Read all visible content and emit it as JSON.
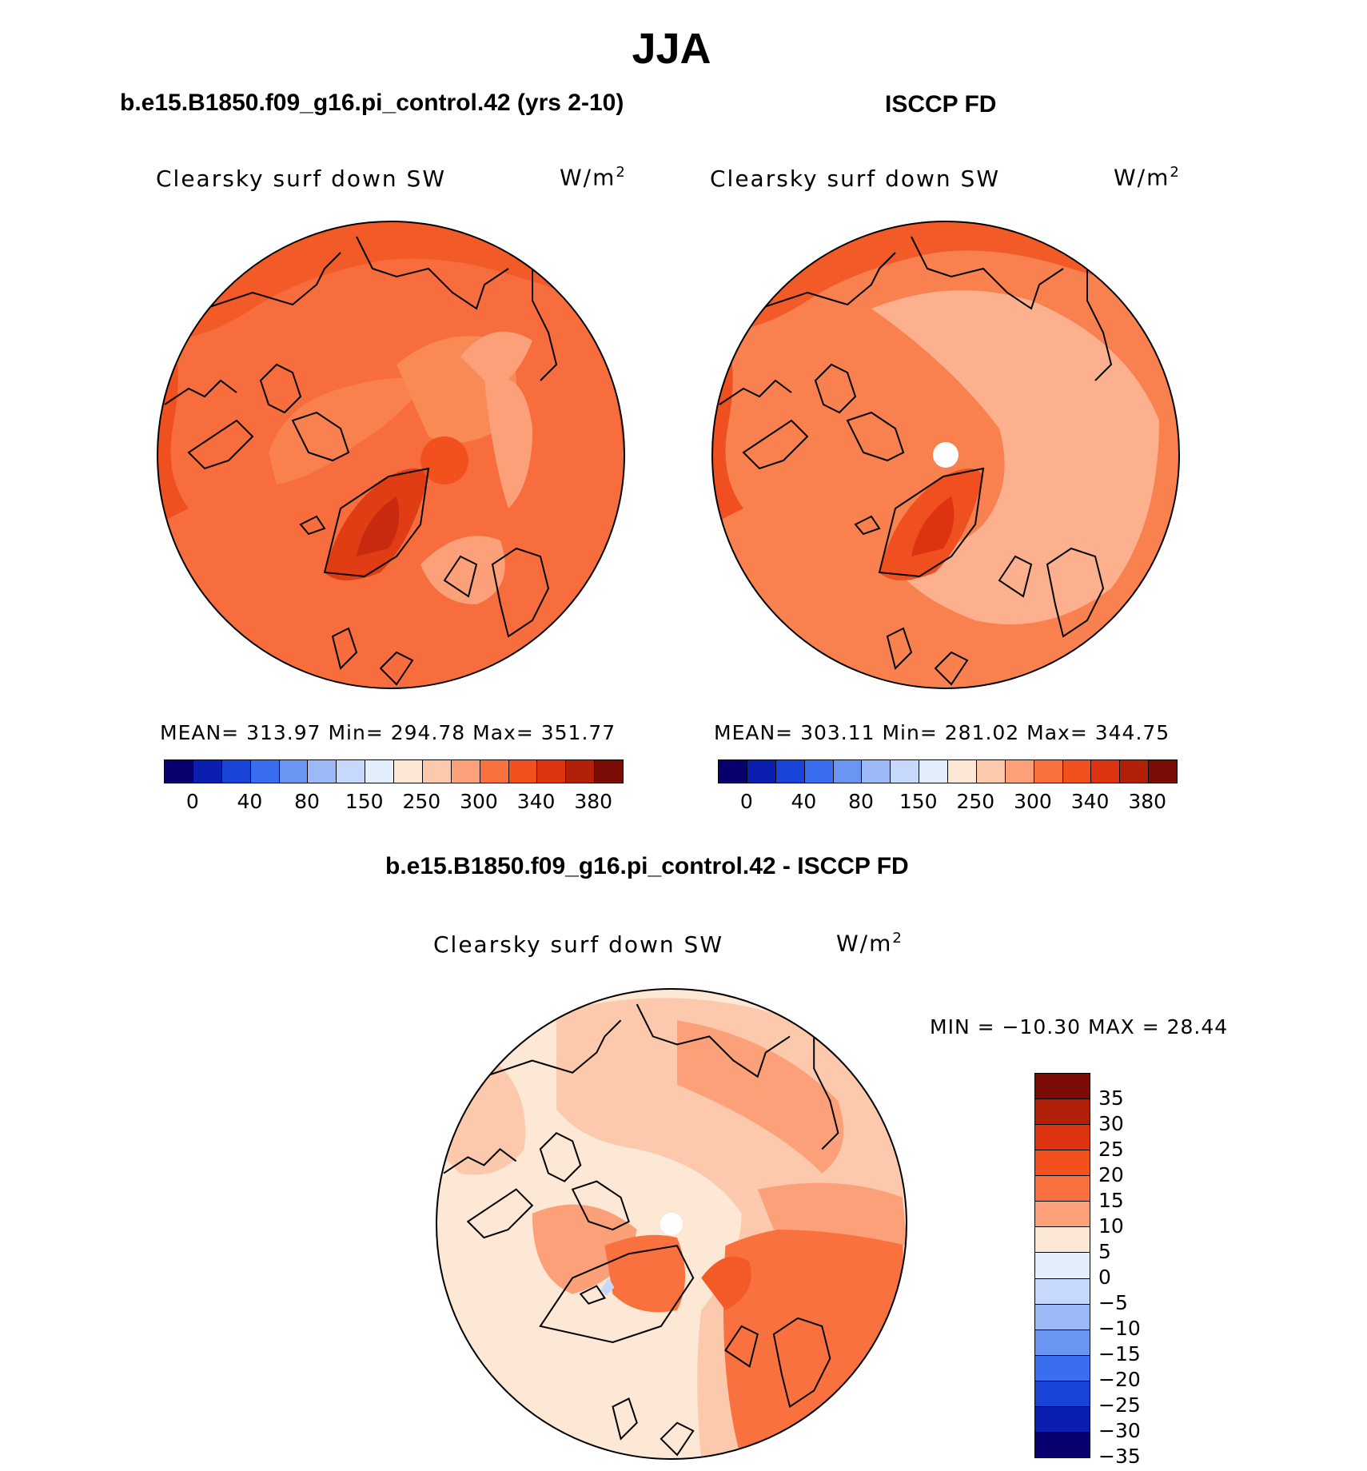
{
  "title": "JJA",
  "panels": [
    {
      "heading": "b.e15.B1850.f09_g16.pi_control.42 (yrs 2-10)",
      "variable": "Clearsky surf down SW",
      "units_base": "W/m",
      "units_exp": "2",
      "stats": "MEAN= 313.97   Min= 294.78   Max= 351.77"
    },
    {
      "heading": "ISCCP FD",
      "variable": "Clearsky surf down SW",
      "units_base": "W/m",
      "units_exp": "2",
      "stats": "MEAN= 303.11   Min= 281.02   Max= 344.75"
    },
    {
      "heading": "b.e15.B1850.f09_g16.pi_control.42 - ISCCP FD",
      "variable": "Clearsky surf down SW",
      "units_base": "W/m",
      "units_exp": "2",
      "stats": "MIN = −10.30 MAX =   28.44"
    }
  ],
  "abs_colorbar": {
    "colors": [
      "#08006e",
      "#0a1fb0",
      "#1a44d8",
      "#3a6ef0",
      "#6b95f3",
      "#9bb9f7",
      "#c6d8fb",
      "#e3eefd",
      "#fde7d5",
      "#fcc9ac",
      "#fca07a",
      "#f9713f",
      "#f2501c",
      "#dd3311",
      "#b3200a",
      "#7a0c05"
    ],
    "labels": [
      "0",
      "40",
      "80",
      "150",
      "250",
      "300",
      "340",
      "380"
    ]
  },
  "diff_colorbar": {
    "colors": [
      "#7a0c05",
      "#b3200a",
      "#dd3311",
      "#f2501c",
      "#f9713f",
      "#fca07a",
      "#fde7d5",
      "#e3eefd",
      "#c6d8fb",
      "#9bb9f7",
      "#6b95f3",
      "#3a6ef0",
      "#1a44d8",
      "#0a1fb0",
      "#08006e"
    ],
    "labels": [
      "35",
      "30",
      "25",
      "20",
      "15",
      "10",
      "5",
      "0",
      "−5",
      "−10",
      "−15",
      "−20",
      "−25",
      "−30",
      "−35"
    ]
  }
}
